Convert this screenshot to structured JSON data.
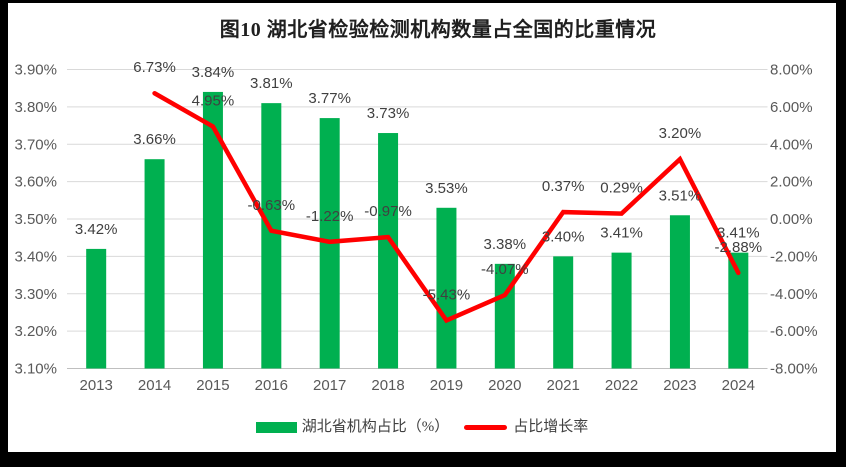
{
  "title": "图10 湖北省检验检测机构数量占全国的比重情况",
  "colors": {
    "bar": "#00B050",
    "line": "#FF0000",
    "grid": "#D9D9D9",
    "axis_line": "#BFBFBF",
    "axis_text": "#595959",
    "data_label_text": "#404040",
    "legend_text": "#404040",
    "title_text": "#1F1F1F",
    "chart_background": "#FFFFFF",
    "page_background": "#000000"
  },
  "chart_data": {
    "type": "bar+line combo",
    "title": "图10 湖北省检验检测机构数量占全国的比重情况",
    "categories": [
      "2013",
      "2014",
      "2015",
      "2016",
      "2017",
      "2018",
      "2019",
      "2020",
      "2021",
      "2022",
      "2023",
      "2024"
    ],
    "series": [
      {
        "name": "湖北省机构占比（%）",
        "type": "bar",
        "axis": "left",
        "values": [
          3.42,
          3.66,
          3.84,
          3.81,
          3.77,
          3.73,
          3.53,
          3.38,
          3.4,
          3.41,
          3.51,
          3.41
        ],
        "data_labels": [
          "3.42%",
          "3.66%",
          "3.84%",
          "3.81%",
          "3.77%",
          "3.73%",
          "3.53%",
          "3.38%",
          "3.40%",
          "3.41%",
          "3.51%",
          "3.41%"
        ]
      },
      {
        "name": "占比增长率",
        "type": "line",
        "axis": "right",
        "values": [
          null,
          6.73,
          4.95,
          -0.63,
          -1.22,
          -0.97,
          -5.43,
          -4.07,
          0.37,
          0.29,
          3.2,
          -2.88
        ],
        "data_labels": [
          null,
          "6.73%",
          "4.95%",
          "-0.63%",
          "-1.22%",
          "-0.97%",
          "-5.43%",
          "-4.07%",
          "0.37%",
          "0.29%",
          "3.20%",
          "-2.88%"
        ]
      }
    ],
    "left_axis": {
      "min": 3.1,
      "max": 3.9,
      "step": 0.1,
      "tick_labels": [
        "3.90%",
        "3.80%",
        "3.70%",
        "3.60%",
        "3.50%",
        "3.40%",
        "3.30%",
        "3.20%",
        "3.10%"
      ]
    },
    "right_axis": {
      "min": -8.0,
      "max": 8.0,
      "step": 2.0,
      "tick_labels": [
        "8.00%",
        "6.00%",
        "4.00%",
        "2.00%",
        "0.00%",
        "-2.00%",
        "-4.00%",
        "-6.00%",
        "-8.00%"
      ]
    },
    "gridlines": "horizontal only",
    "legend_position": "bottom"
  },
  "legend": {
    "bar_label": "湖北省机构占比（%）",
    "line_label": "占比增长率"
  }
}
